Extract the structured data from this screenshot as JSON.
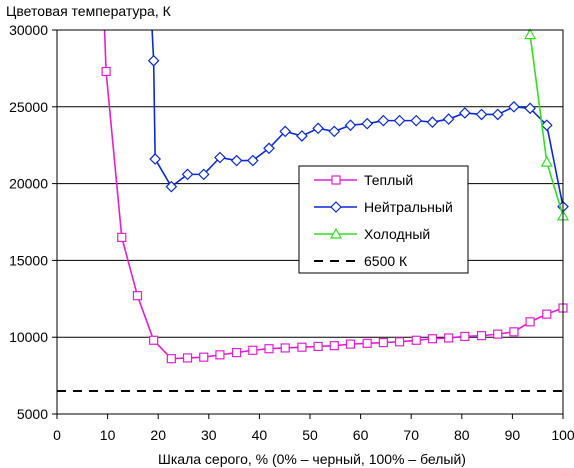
{
  "chart_data": {
    "type": "line",
    "ylabel": "Цветовая температура, К",
    "xlabel": "Шкала серого, % (0% – черный, 100% – белый)",
    "xlim": [
      0,
      100
    ],
    "ylim": [
      5000,
      30000
    ],
    "xticks": [
      0,
      10,
      20,
      30,
      40,
      50,
      60,
      70,
      80,
      90,
      100
    ],
    "yticks": [
      5000,
      10000,
      15000,
      20000,
      25000,
      30000
    ],
    "grid": "horizontal",
    "legend_position": "right",
    "series": [
      {
        "name": "Теплый",
        "color": "#e020d0",
        "marker": "square",
        "x": [
          9.4,
          9.7,
          12.8,
          15.9,
          19.1,
          22.6,
          25.8,
          29.0,
          32.2,
          35.5,
          38.7,
          41.9,
          45.1,
          48.4,
          51.6,
          54.8,
          58.0,
          61.3,
          64.5,
          67.7,
          71.0,
          74.2,
          77.4,
          80.6,
          83.9,
          87.1,
          90.3,
          93.5,
          96.8,
          100
        ],
        "y": [
          30000,
          27300,
          16500,
          12700,
          9800,
          8600,
          8650,
          8700,
          8850,
          9000,
          9150,
          9250,
          9300,
          9350,
          9400,
          9450,
          9550,
          9600,
          9650,
          9700,
          9800,
          9900,
          9950,
          10050,
          10100,
          10200,
          10350,
          11000,
          11500,
          11900
        ]
      },
      {
        "name": "Нейтральный",
        "color": "#0a2ad0",
        "marker": "diamond",
        "x": [
          18.8,
          19.1,
          19.4,
          22.6,
          25.8,
          29.0,
          32.2,
          35.5,
          38.7,
          41.9,
          45.1,
          48.4,
          51.6,
          54.8,
          58.0,
          61.3,
          64.5,
          67.7,
          71.0,
          74.2,
          77.4,
          80.6,
          83.9,
          87.1,
          90.3,
          93.5,
          96.8,
          100
        ],
        "y": [
          30000,
          28000,
          21600,
          19800,
          20600,
          20600,
          21700,
          21500,
          21500,
          22300,
          23400,
          23100,
          23600,
          23400,
          23800,
          23900,
          24100,
          24100,
          24100,
          24000,
          24200,
          24600,
          24500,
          24500,
          25000,
          24900,
          23800,
          18500
        ]
      },
      {
        "name": "Холодный",
        "color": "#33dd22",
        "marker": "triangle",
        "x": [
          93.2,
          93.5,
          96.8,
          100
        ],
        "y": [
          30000,
          29700,
          21400,
          17900
        ]
      },
      {
        "name": "6500 К",
        "color": "#000000",
        "marker": "none",
        "dashed": true,
        "x": [
          0,
          100
        ],
        "y": [
          6500,
          6500
        ]
      }
    ]
  }
}
